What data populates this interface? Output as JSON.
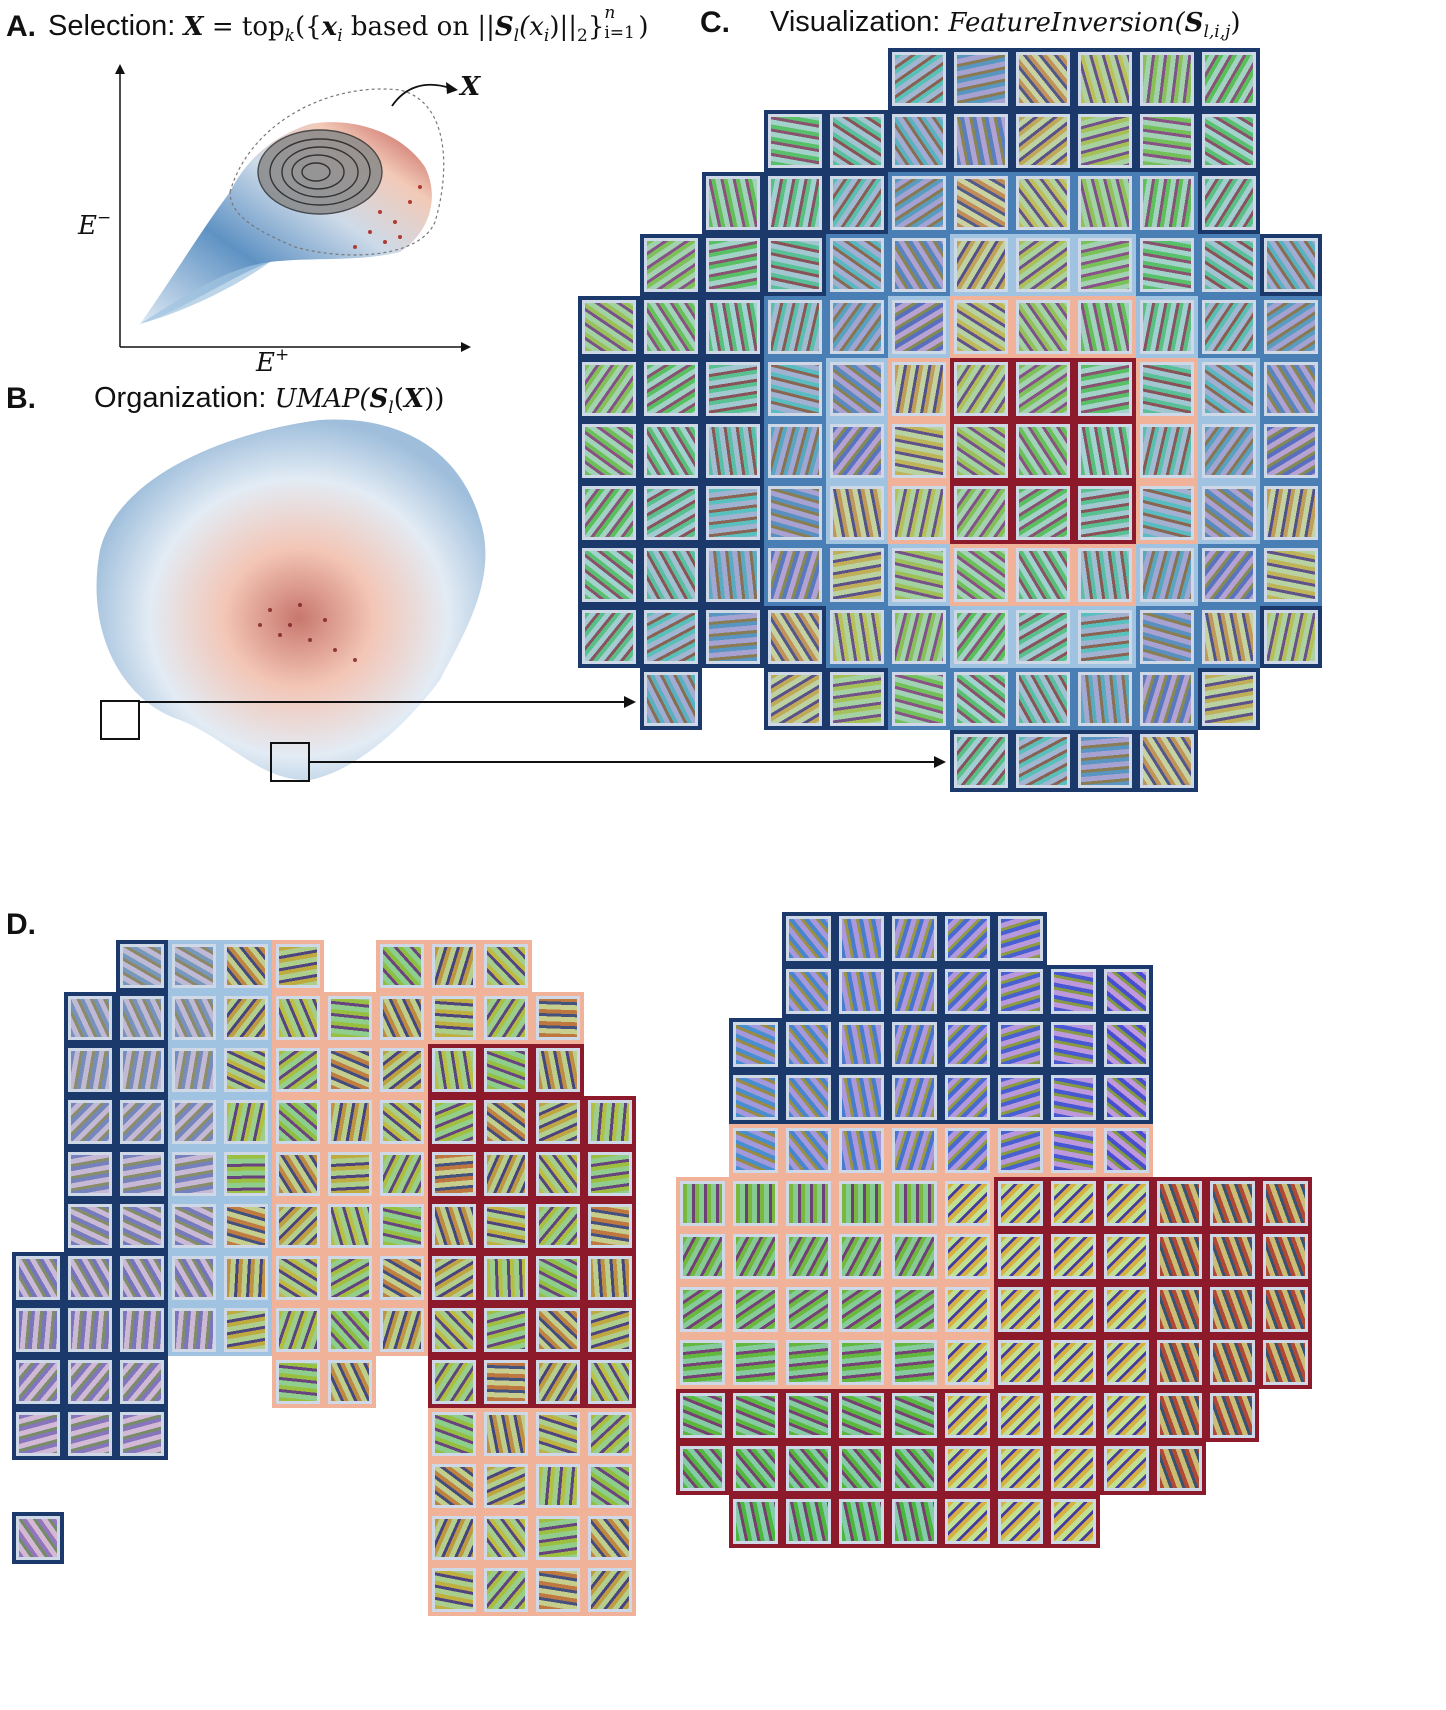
{
  "panels": {
    "a": {
      "label": "A.",
      "title": "Selection:",
      "formula_X": "X",
      "formula_eq": " = top",
      "formula_k": "k",
      "formula_mid": "({",
      "formula_x": "x",
      "formula_i": "i",
      "formula_based": " based on ||",
      "formula_S": "S",
      "formula_l": "l",
      "formula_arg": "(x",
      "formula_i2": "i",
      "formula_tail": ")||",
      "formula_2": "2",
      "formula_close": "}",
      "formula_n": "n",
      "formula_i1": "i=1",
      "formula_end": ")",
      "axis_y": "E",
      "axis_y_sup": "−",
      "axis_x": "E",
      "axis_x_sup": "+",
      "callout": "X"
    },
    "b": {
      "label": "B.",
      "title": "Organization:",
      "formula_prefix": "UMAP(",
      "formula_S": "S",
      "formula_l": "l",
      "formula_mid": "(",
      "formula_X": "X",
      "formula_end": "))"
    },
    "c": {
      "label": "C.",
      "title": "Visualization:",
      "formula_prefix": "FeatureInversion(",
      "formula_S": "S",
      "formula_sub": "l,i,j",
      "formula_end": ")"
    },
    "d": {
      "label": "D."
    }
  },
  "colors": {
    "deep_blue": "#1b3a6b",
    "mid_blue": "#4a7fb5",
    "light_blue": "#9fc3e0",
    "pale": "#f2e6dc",
    "light_red": "#f0b39a",
    "mid_red": "#d86a52",
    "deep_red": "#8c1a2a"
  }
}
